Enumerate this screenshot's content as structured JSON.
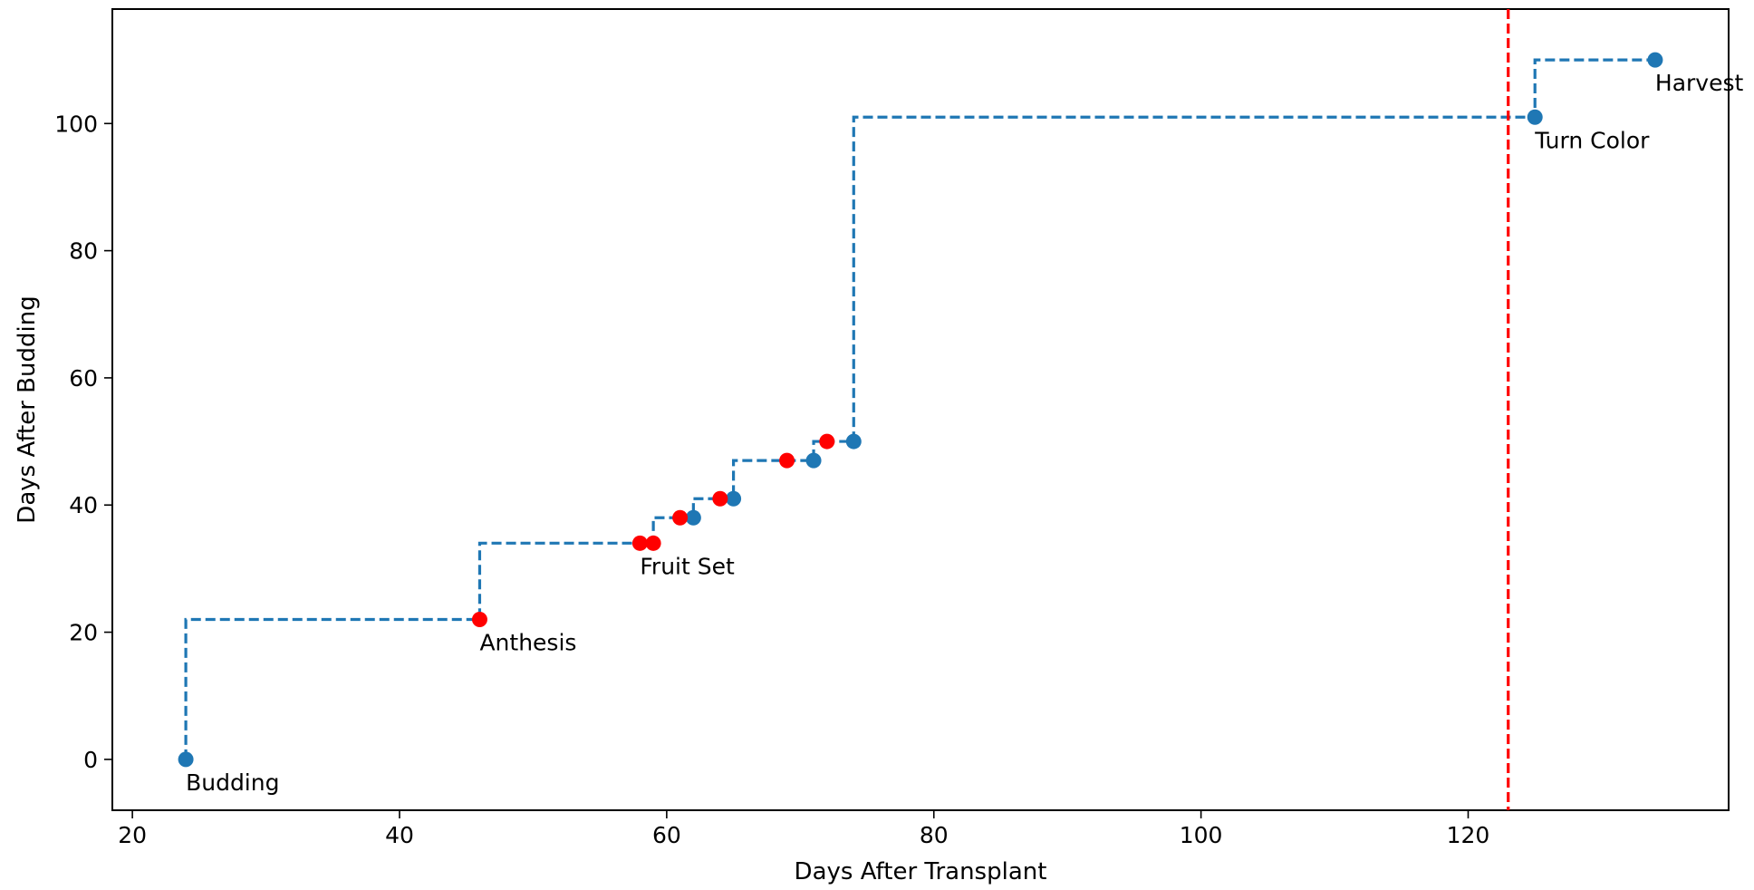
{
  "chart_data": {
    "type": "scatter",
    "title": "",
    "xlabel": "Days After Transplant",
    "ylabel": "Days After Budding",
    "xlim": [
      18.5,
      139.5
    ],
    "ylim": [
      -8,
      118
    ],
    "xticks": [
      20,
      40,
      60,
      80,
      100,
      120
    ],
    "yticks": [
      0,
      20,
      40,
      60,
      80,
      100
    ],
    "grid": false,
    "step_line": {
      "style": "dashed",
      "color": "#1f77b4",
      "x": [
        24,
        46,
        58,
        59,
        61,
        62,
        64,
        65,
        69,
        71,
        72,
        74,
        125,
        134
      ],
      "y": [
        0,
        22,
        34,
        34,
        38,
        38,
        41,
        41,
        47,
        47,
        50,
        50,
        101,
        110
      ]
    },
    "series": [
      {
        "color": "#1f77b4",
        "points": [
          {
            "x": 24,
            "y": 0
          },
          {
            "x": 62,
            "y": 38
          },
          {
            "x": 65,
            "y": 41
          },
          {
            "x": 71,
            "y": 47
          },
          {
            "x": 74,
            "y": 50
          },
          {
            "x": 125,
            "y": 101
          },
          {
            "x": 134,
            "y": 110
          }
        ]
      },
      {
        "color": "#ff0000",
        "points": [
          {
            "x": 46,
            "y": 22
          },
          {
            "x": 58,
            "y": 34
          },
          {
            "x": 59,
            "y": 34
          },
          {
            "x": 61,
            "y": 38
          },
          {
            "x": 64,
            "y": 41
          },
          {
            "x": 69,
            "y": 47
          },
          {
            "x": 72,
            "y": 50
          }
        ]
      }
    ],
    "annotations": [
      {
        "text": "Budding",
        "x": 24,
        "y": 0
      },
      {
        "text": "Anthesis",
        "x": 46,
        "y": 22
      },
      {
        "text": "Fruit Set",
        "x": 58,
        "y": 34
      },
      {
        "text": "Turn Color",
        "x": 125,
        "y": 101
      },
      {
        "text": "Harvest",
        "x": 134,
        "y": 110
      }
    ],
    "vline": {
      "x": 123,
      "color": "#ff0000",
      "style": "dashed"
    }
  }
}
